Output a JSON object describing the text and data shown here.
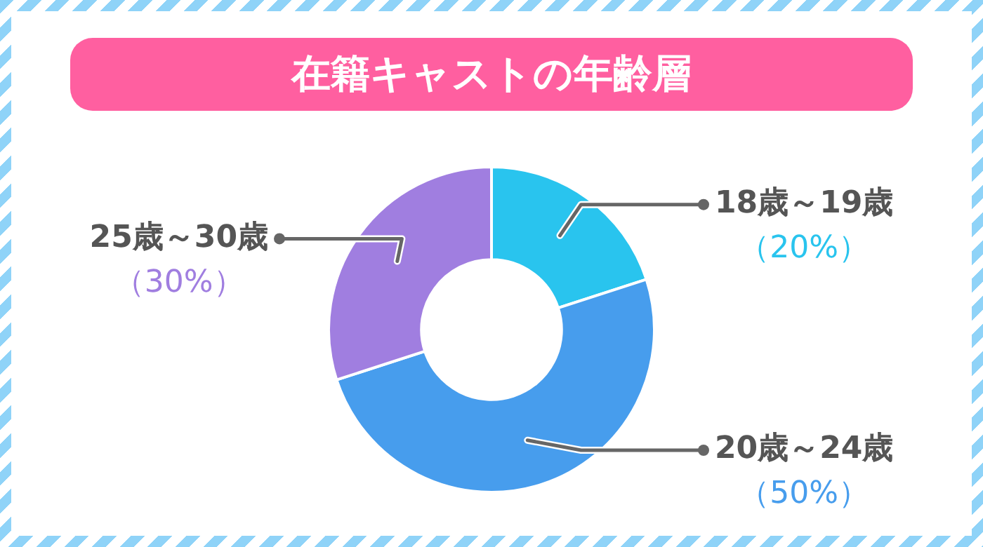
{
  "chart_data": {
    "type": "donut",
    "title": "在籍キャストの年齢層",
    "categories": [
      "18歳～19歳",
      "20歳～24歳",
      "25歳～30歳"
    ],
    "values": [
      20,
      50,
      30
    ],
    "value_labels": [
      "（20%）",
      "（50%）",
      "（30%）"
    ],
    "colors": [
      "#29c4ee",
      "#479ded",
      "#a07ee0"
    ],
    "legend": false
  }
}
